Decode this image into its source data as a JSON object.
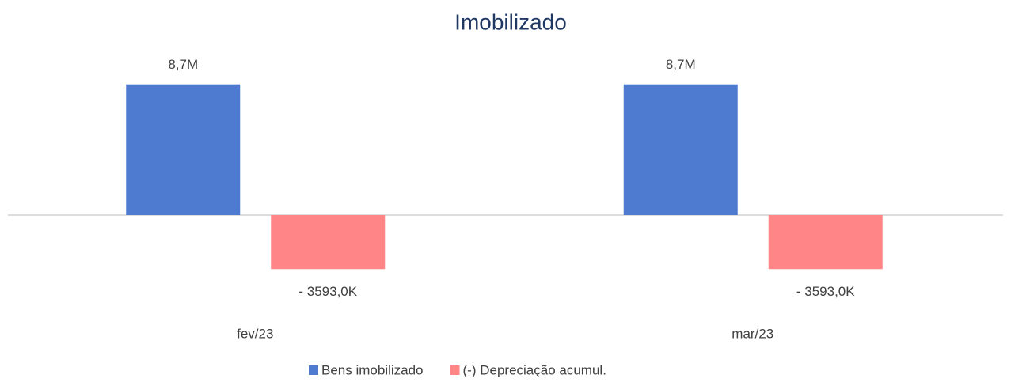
{
  "chart_data": {
    "type": "bar",
    "title": "Imobilizado",
    "categories": [
      "fev/23",
      "mar/23"
    ],
    "series": [
      {
        "name": "Bens imobilizado",
        "color": "#4e7bcf",
        "values": [
          8700000,
          8700000
        ],
        "value_labels": [
          "8,7M",
          "8,7M"
        ]
      },
      {
        "name": "(-) Depreciação acumul.",
        "color": "#ff8587",
        "values": [
          -3593000,
          -3593000
        ],
        "value_labels": [
          "- 3593,0K",
          "- 3593,0K"
        ]
      }
    ],
    "ylim": [
      -5000000,
      10000000
    ],
    "legend": "bottom"
  }
}
